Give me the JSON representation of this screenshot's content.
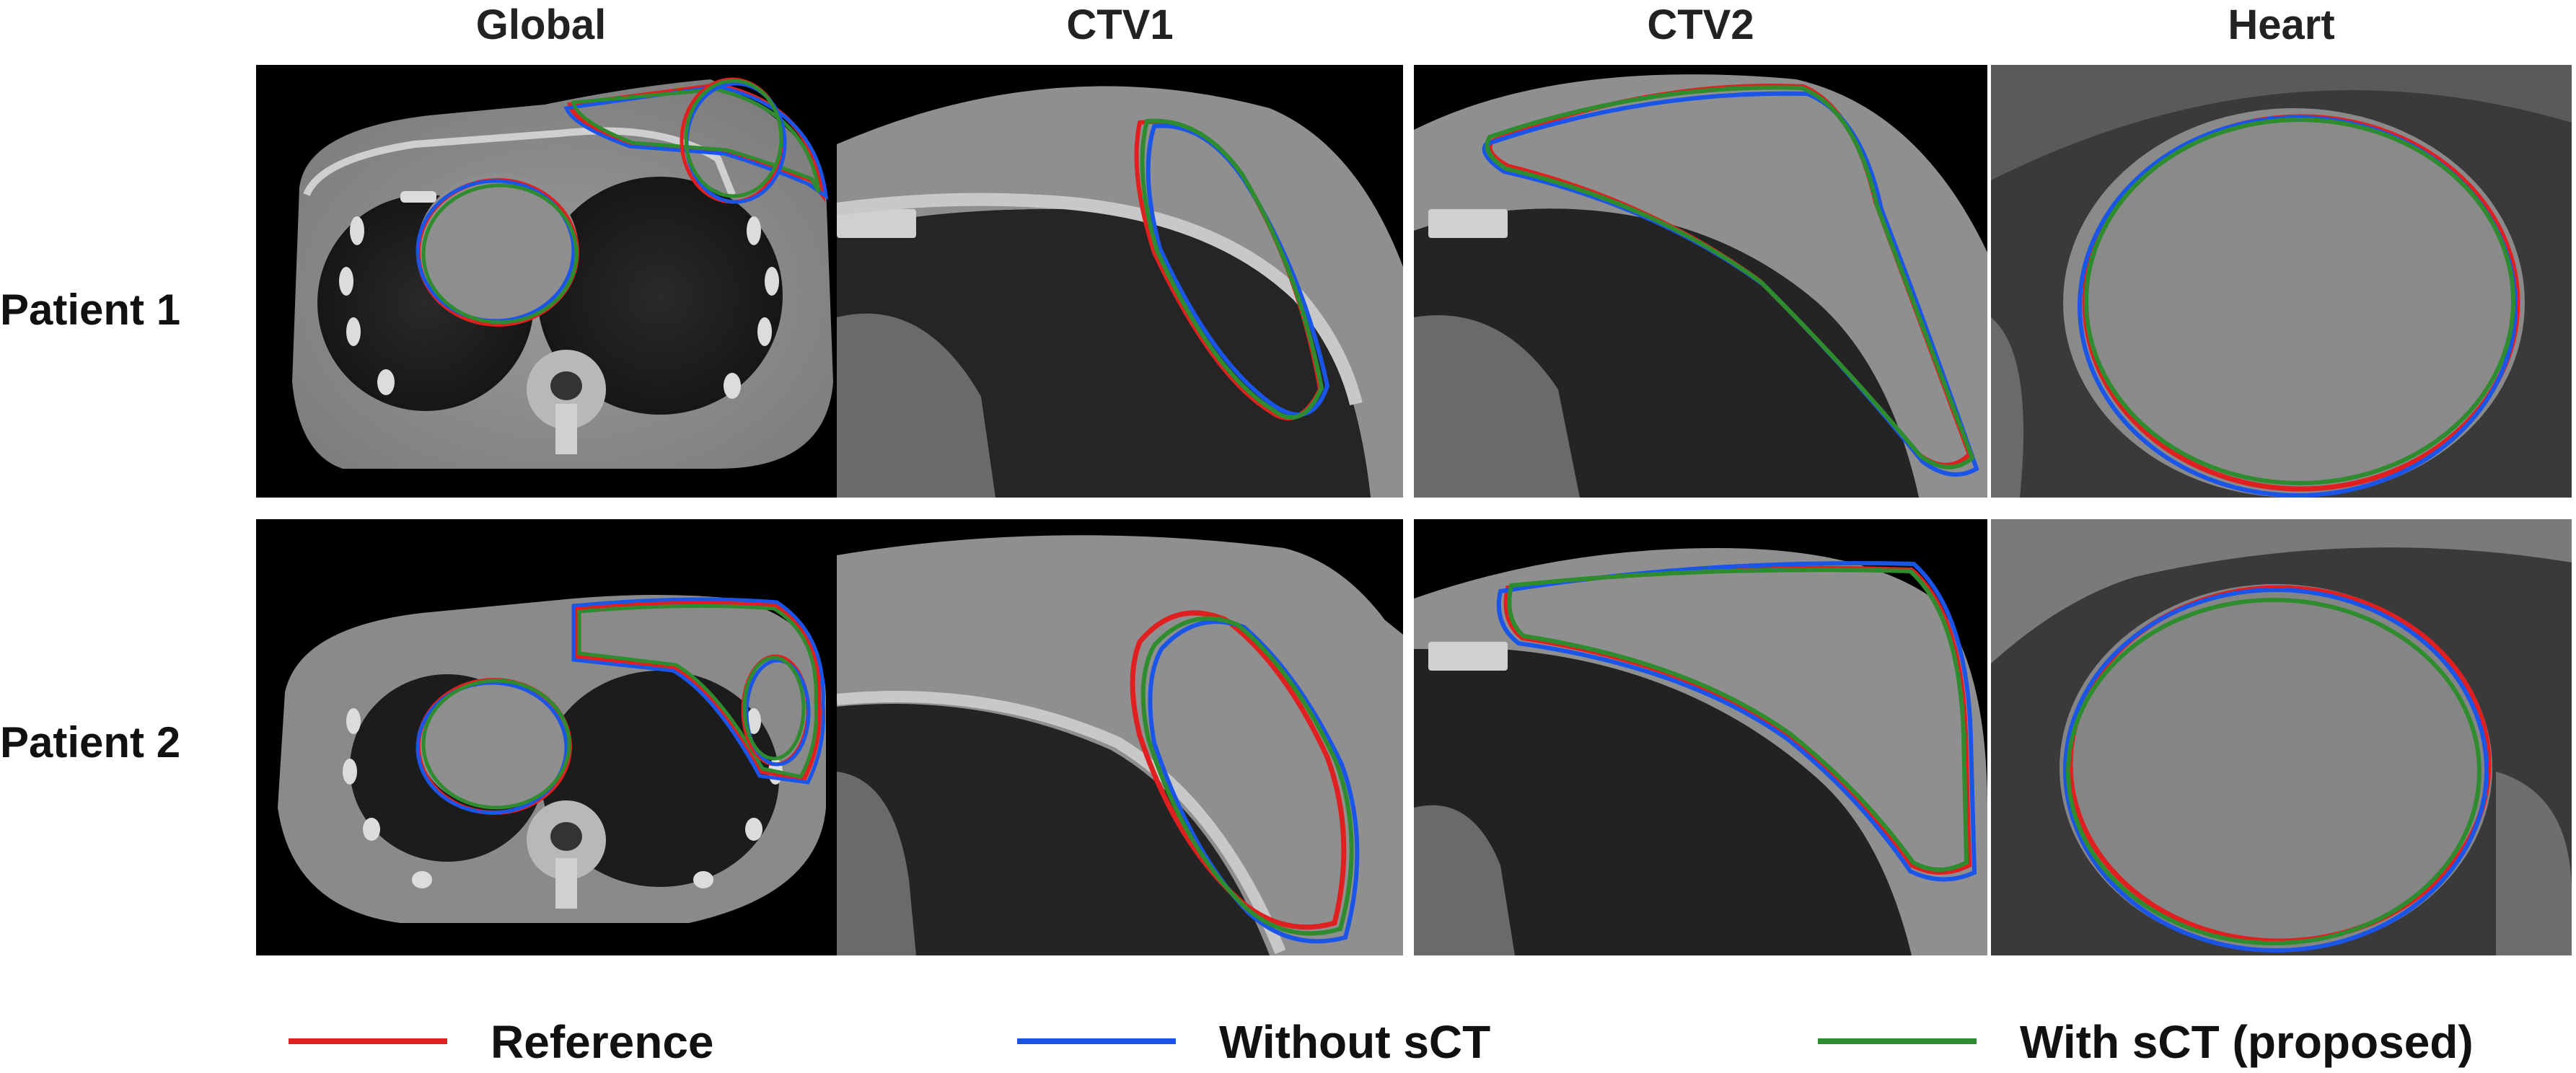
{
  "columns": [
    "Global",
    "CTV1",
    "CTV2",
    "Heart"
  ],
  "rows": [
    "Patient 1",
    "Patient 2"
  ],
  "legend": [
    {
      "label": "Reference",
      "color": "#e02020"
    },
    {
      "label": "Without sCT",
      "color": "#1a55e8"
    },
    {
      "label": "With sCT (proposed)",
      "color": "#2e8b2e"
    }
  ]
}
